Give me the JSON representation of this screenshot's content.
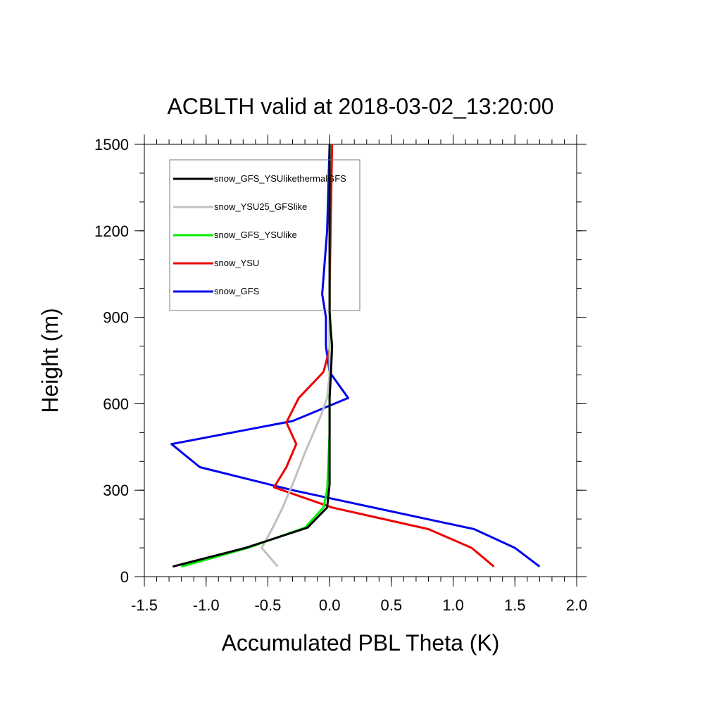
{
  "chart_data": {
    "type": "line",
    "title": "ACBLTH valid at 2018-03-02_13:20:00",
    "xlabel": "Accumulated PBL Theta (K)",
    "ylabel": "Height (m)",
    "xlim": [
      -1.5,
      2.0
    ],
    "ylim": [
      0,
      1500
    ],
    "xticks": [
      -1.5,
      -1.0,
      -0.5,
      0.0,
      0.5,
      1.0,
      1.5,
      2.0
    ],
    "xtick_labels": [
      "-1.5",
      "-1.0",
      "-0.5",
      "0.0",
      "0.5",
      "1.0",
      "1.5",
      "2.0"
    ],
    "yticks": [
      0,
      300,
      600,
      900,
      1200,
      1500
    ],
    "ytick_labels": [
      "0",
      "300",
      "600",
      "900",
      "1200",
      "1500"
    ],
    "grid": false,
    "legend_position": "top-left",
    "series": [
      {
        "name": "snow_GFS_YSUlikethermalGFS",
        "color": "#000000",
        "points": [
          [
            -1.27,
            35
          ],
          [
            -0.68,
            100
          ],
          [
            -0.18,
            170
          ],
          [
            -0.02,
            240
          ],
          [
            0.0,
            320
          ],
          [
            0.0,
            500
          ],
          [
            0.0,
            620
          ],
          [
            0.01,
            700
          ],
          [
            0.02,
            800
          ],
          [
            0.01,
            850
          ],
          [
            0.0,
            920
          ],
          [
            0.0,
            1100
          ],
          [
            0.0,
            1300
          ],
          [
            0.0,
            1500
          ]
        ]
      },
      {
        "name": "snow_YSU25_GFSlike",
        "color": "#c0c0c0",
        "points": [
          [
            -0.42,
            35
          ],
          [
            -0.55,
            100
          ],
          [
            -0.46,
            170
          ],
          [
            -0.38,
            240
          ],
          [
            -0.3,
            320
          ],
          [
            -0.2,
            430
          ],
          [
            -0.07,
            560
          ],
          [
            -0.02,
            620
          ],
          [
            0.0,
            700
          ],
          [
            0.0,
            900
          ],
          [
            0.0,
            1500
          ]
        ]
      },
      {
        "name": "snow_GFS_YSUlike",
        "color": "#00ee00",
        "points": [
          [
            -1.2,
            35
          ],
          [
            -0.66,
            100
          ],
          [
            -0.2,
            170
          ],
          [
            -0.05,
            240
          ],
          [
            -0.02,
            300
          ],
          [
            -0.01,
            400
          ],
          [
            0.0,
            500
          ],
          [
            0.0,
            620
          ],
          [
            0.0,
            900
          ],
          [
            0.0,
            1500
          ]
        ]
      },
      {
        "name": "snow_YSU",
        "color": "#ee0000",
        "points": [
          [
            1.33,
            35
          ],
          [
            1.15,
            100
          ],
          [
            0.8,
            165
          ],
          [
            0.02,
            240
          ],
          [
            -0.45,
            310
          ],
          [
            -0.35,
            380
          ],
          [
            -0.27,
            460
          ],
          [
            -0.35,
            535
          ],
          [
            -0.25,
            620
          ],
          [
            -0.05,
            710
          ],
          [
            0.0,
            790
          ],
          [
            0.0,
            850
          ],
          [
            0.0,
            1000
          ],
          [
            0.02,
            1500
          ]
        ]
      },
      {
        "name": "snow_GFS",
        "color": "#0000ee",
        "points": [
          [
            1.7,
            35
          ],
          [
            1.5,
            100
          ],
          [
            1.17,
            165
          ],
          [
            -0.3,
            300
          ],
          [
            -1.05,
            380
          ],
          [
            -1.28,
            460
          ],
          [
            -0.3,
            540
          ],
          [
            0.15,
            620
          ],
          [
            0.0,
            710
          ],
          [
            -0.03,
            800
          ],
          [
            -0.03,
            900
          ],
          [
            -0.06,
            980
          ],
          [
            -0.02,
            1200
          ],
          [
            0.0,
            1500
          ]
        ]
      }
    ]
  }
}
